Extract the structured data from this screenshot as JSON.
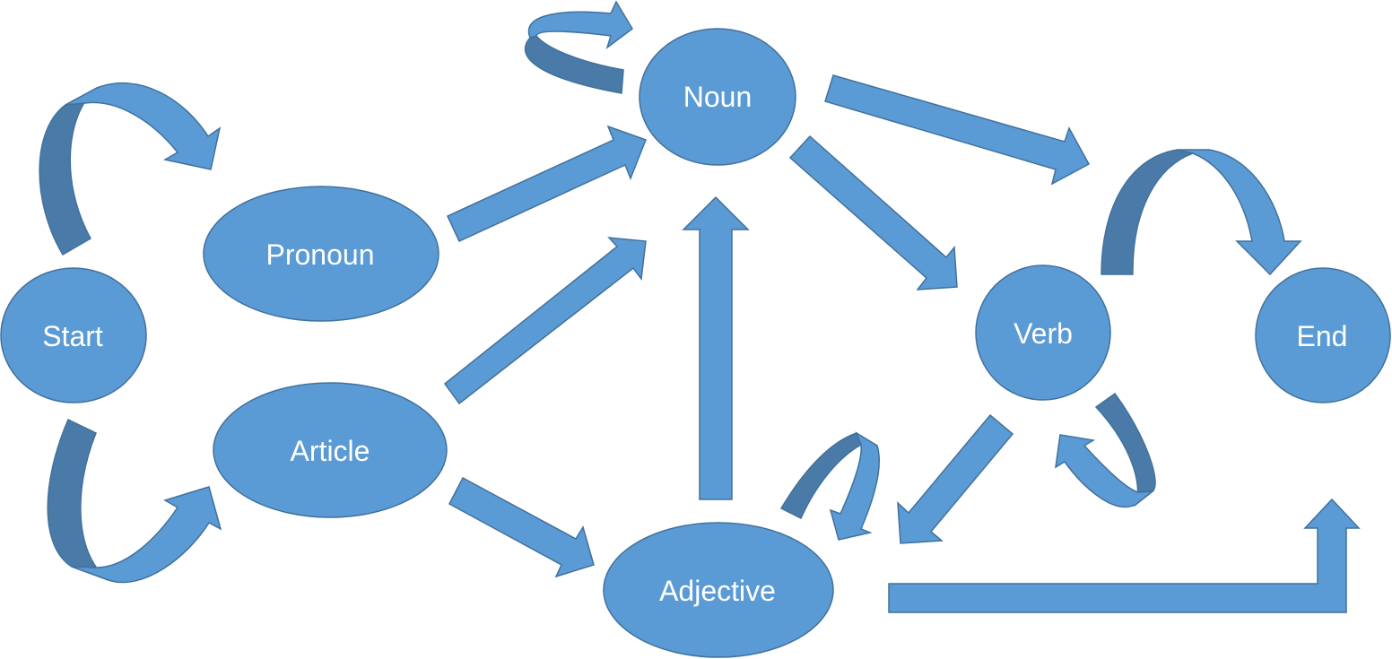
{
  "diagram": {
    "colors": {
      "fill": "#5b9bd5",
      "stroke": "#41719c",
      "shade": "#4a7aa8",
      "text": "#ffffff"
    },
    "nodes": {
      "start": "Start",
      "pronoun": "Pronoun",
      "article": "Article",
      "noun": "Noun",
      "adjective": "Adjective",
      "verb": "Verb",
      "end": "End"
    },
    "edges": [
      {
        "from": "start",
        "to": "pronoun"
      },
      {
        "from": "start",
        "to": "article"
      },
      {
        "from": "pronoun",
        "to": "noun"
      },
      {
        "from": "article",
        "to": "noun"
      },
      {
        "from": "article",
        "to": "adjective"
      },
      {
        "from": "adjective",
        "to": "noun"
      },
      {
        "from": "noun",
        "to": "noun"
      },
      {
        "from": "noun",
        "to": "verb"
      },
      {
        "from": "noun",
        "to": "verb"
      },
      {
        "from": "verb",
        "to": "end"
      },
      {
        "from": "verb",
        "to": "adjective"
      },
      {
        "from": "verb",
        "to": "verb"
      },
      {
        "from": "adjective",
        "to": "adjective"
      },
      {
        "from": "adjective",
        "to": "end"
      }
    ]
  }
}
